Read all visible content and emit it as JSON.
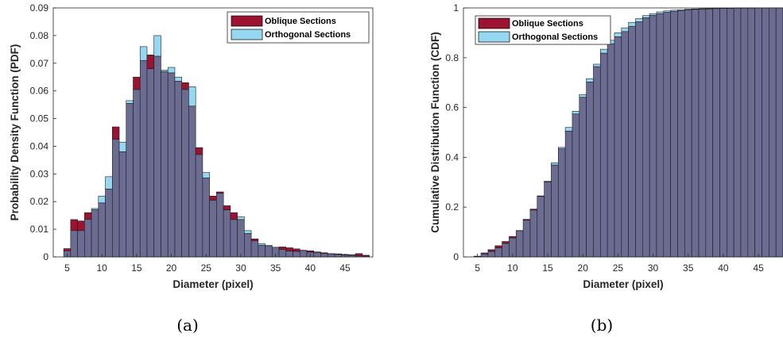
{
  "chart_data": [
    {
      "type": "bar",
      "caption": "(a)",
      "xlabel": "Diameter (pixel)",
      "ylabel": "Probability Density Function (PDF)",
      "xlim": [
        3,
        49
      ],
      "ylim": [
        0,
        0.09
      ],
      "xticks": [
        5,
        10,
        15,
        20,
        25,
        30,
        35,
        40,
        45
      ],
      "yticks": [
        0,
        0.01,
        0.02,
        0.03,
        0.04,
        0.05,
        0.06,
        0.07,
        0.08,
        0.09
      ],
      "grid": false,
      "legend": "top-right",
      "x": [
        5,
        6,
        7,
        8,
        9,
        10,
        11,
        12,
        13,
        14,
        15,
        16,
        17,
        18,
        19,
        20,
        21,
        22,
        23,
        24,
        25,
        26,
        27,
        28,
        29,
        30,
        31,
        32,
        33,
        34,
        35,
        36,
        37,
        38,
        39,
        40,
        41,
        42,
        43,
        44,
        45,
        46,
        47,
        48
      ],
      "series": [
        {
          "name": "Oblique Sections",
          "color": "#9b1330",
          "values": [
            0.003,
            0.0135,
            0.013,
            0.016,
            0.017,
            0.0195,
            0.0245,
            0.047,
            0.038,
            0.0555,
            0.065,
            0.071,
            0.073,
            0.0725,
            0.067,
            0.0665,
            0.0635,
            0.063,
            0.0545,
            0.0395,
            0.0285,
            0.022,
            0.0235,
            0.0185,
            0.016,
            0.0135,
            0.0085,
            0.0065,
            0.0042,
            0.0038,
            0.0035,
            0.0036,
            0.0033,
            0.0029,
            0.0023,
            0.0022,
            0.0018,
            0.0015,
            0.0012,
            0.0011,
            0.0009,
            0.0008,
            0.0012,
            0.0006
          ]
        },
        {
          "name": "Orthogonal Sections",
          "color": "#96d8f2",
          "values": [
            0.0022,
            0.0095,
            0.0095,
            0.0136,
            0.0175,
            0.022,
            0.029,
            0.0425,
            0.0415,
            0.0565,
            0.0605,
            0.076,
            0.068,
            0.08,
            0.0675,
            0.0685,
            0.065,
            0.0605,
            0.0615,
            0.037,
            0.0305,
            0.0205,
            0.023,
            0.017,
            0.0135,
            0.0145,
            0.0095,
            0.0058,
            0.0048,
            0.0042,
            0.0035,
            0.0027,
            0.0021,
            0.002,
            0.0024,
            0.0017,
            0.0016,
            0.0012,
            0.0011,
            0.0009,
            0.0007,
            0.0006,
            0.0004,
            0.0003
          ]
        }
      ]
    },
    {
      "type": "bar",
      "caption": "(b)",
      "xlabel": "Diameter (pixel)",
      "ylabel": "Cumulative Distribution Function (CDF)",
      "xlim": [
        3,
        48.5
      ],
      "ylim": [
        0,
        1
      ],
      "xticks": [
        5,
        10,
        15,
        20,
        25,
        30,
        35,
        40,
        45
      ],
      "yticks": [
        0,
        0.2,
        0.4,
        0.6,
        0.8,
        1
      ],
      "grid": false,
      "legend": "top-left",
      "x": [
        5,
        6,
        7,
        8,
        9,
        10,
        11,
        12,
        13,
        14,
        15,
        16,
        17,
        18,
        19,
        20,
        21,
        22,
        23,
        24,
        25,
        26,
        27,
        28,
        29,
        30,
        31,
        32,
        33,
        34,
        35,
        36,
        37,
        38,
        39,
        40,
        41,
        42,
        43,
        44,
        45,
        46,
        47,
        48
      ],
      "series": [
        {
          "name": "Oblique Sections",
          "color": "#9b1330",
          "values": [
            0.003,
            0.016,
            0.029,
            0.045,
            0.062,
            0.082,
            0.106,
            0.151,
            0.192,
            0.245,
            0.301,
            0.369,
            0.434,
            0.505,
            0.574,
            0.641,
            0.702,
            0.764,
            0.818,
            0.856,
            0.884,
            0.905,
            0.926,
            0.944,
            0.96,
            0.97,
            0.977,
            0.982,
            0.986,
            0.989,
            0.992,
            0.994,
            0.995,
            0.996,
            0.997,
            0.998,
            0.998,
            0.999,
            0.999,
            0.999,
            1.0,
            1.0,
            1.0,
            1.0
          ]
        },
        {
          "name": "Orthogonal Sections",
          "color": "#96d8f2",
          "values": [
            0.002,
            0.012,
            0.022,
            0.036,
            0.054,
            0.076,
            0.105,
            0.147,
            0.188,
            0.243,
            0.304,
            0.378,
            0.44,
            0.52,
            0.585,
            0.652,
            0.716,
            0.774,
            0.834,
            0.87,
            0.9,
            0.92,
            0.942,
            0.957,
            0.969,
            0.977,
            0.984,
            0.988,
            0.991,
            0.993,
            0.995,
            0.996,
            0.997,
            0.998,
            0.998,
            0.999,
            0.999,
            1.0,
            1.0,
            1.0,
            1.0,
            1.0,
            1.0,
            1.0
          ]
        }
      ]
    }
  ]
}
